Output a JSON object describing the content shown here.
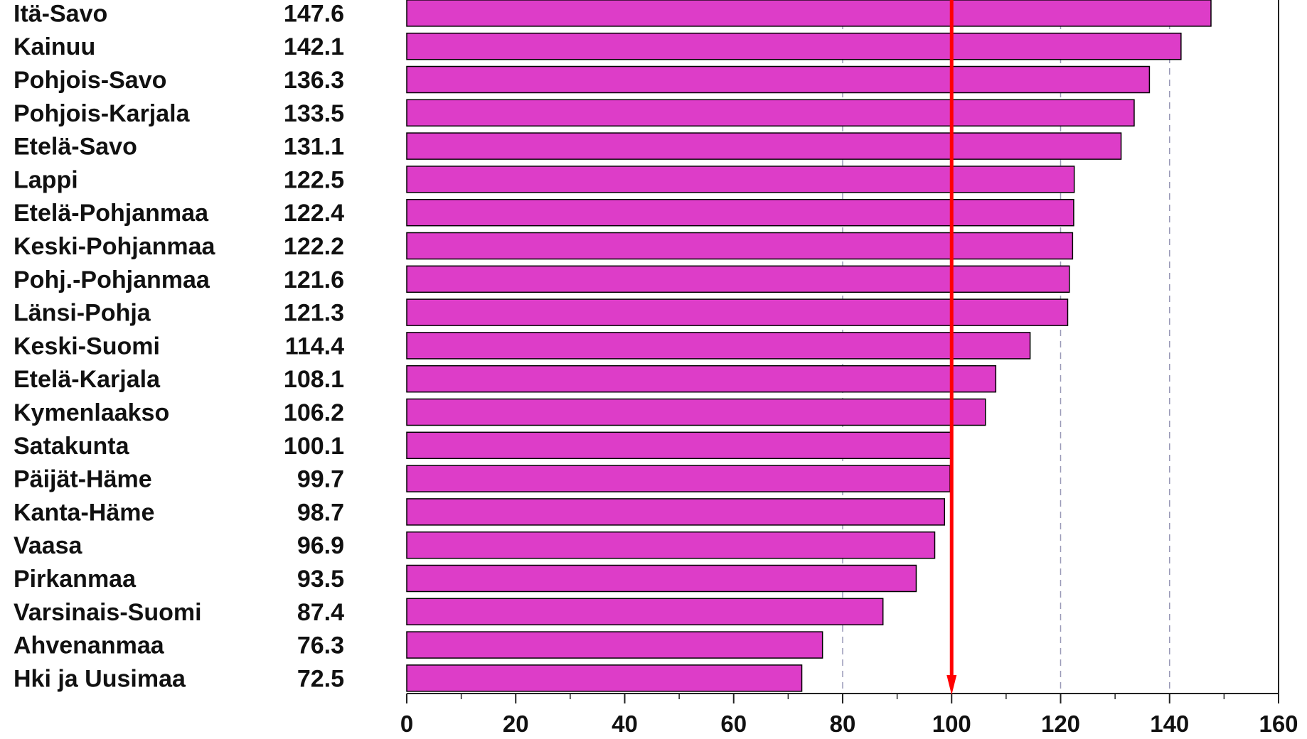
{
  "chart_data": {
    "type": "bar",
    "orientation": "horizontal",
    "title": "",
    "xlabel": "",
    "ylabel": "",
    "categories": [
      "Itä-Savo",
      "Kainuu",
      "Pohjois-Savo",
      "Pohjois-Karjala",
      "Etelä-Savo",
      "Lappi",
      "Etelä-Pohjanmaa",
      "Keski-Pohjanmaa",
      "Pohj.-Pohjanmaa",
      "Länsi-Pohja",
      "Keski-Suomi",
      "Etelä-Karjala",
      "Kymenlaakso",
      "Satakunta",
      "Päijät-Häme",
      "Kanta-Häme",
      "Vaasa",
      "Pirkanmaa",
      "Varsinais-Suomi",
      "Ahvenanmaa",
      "Hki ja Uusimaa"
    ],
    "value_labels": [
      "147.6",
      "142.1",
      "136.3",
      "133.5",
      "131.1",
      "122.5",
      "122.4",
      "122.2",
      "121.6",
      "121.3",
      "114.4",
      "108.1",
      "106.2",
      "100.1",
      "99.7",
      "98.7",
      "96.9",
      "93.5",
      "87.4",
      "76.3",
      "72.5"
    ],
    "values": [
      147.6,
      142.1,
      136.3,
      133.5,
      131.1,
      122.5,
      122.4,
      122.2,
      121.6,
      121.3,
      114.4,
      108.1,
      106.2,
      100.1,
      99.7,
      98.7,
      96.9,
      93.5,
      87.4,
      76.3,
      72.5
    ],
    "xlim": [
      0,
      160
    ],
    "x_ticks": [
      "0",
      "20",
      "40",
      "60",
      "80",
      "100",
      "120",
      "140",
      "160"
    ],
    "gridlines": [
      80,
      120,
      140
    ],
    "grid": "dashed vertical",
    "reference_line": {
      "value": 100,
      "color": "#ff0000"
    },
    "legend": "none",
    "bar_color": "#dd3dc8",
    "bar_edge_color": "#000000"
  }
}
